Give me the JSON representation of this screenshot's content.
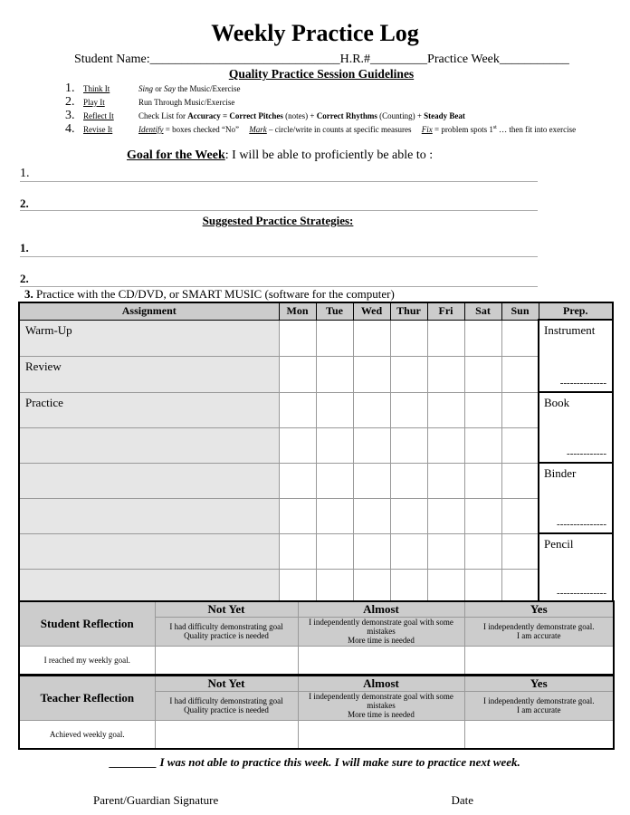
{
  "title": "Weekly Practice Log",
  "header": {
    "student_name": "Student Name:______________________________H.R.#_________Practice Week___________"
  },
  "guidelines": {
    "title": "Quality Practice Session Guidelines",
    "items": [
      {
        "num": "1.",
        "step": "Think It",
        "desc_html": "<i>Sing</i> or <i>Say</i> the Music/Exercise"
      },
      {
        "num": "2.",
        "step": "Play It",
        "desc_html": "Run Through Music/Exercise"
      },
      {
        "num": "3.",
        "step": "Reflect It",
        "desc_html": "Check List for <b>Accuracy = Correct Pitches</b> (notes) + <b>Correct Rhythms</b> (Counting) + <b>Steady Beat</b>"
      },
      {
        "num": "4.",
        "step": "Revise It",
        "desc_html": "<i><u>Identify</u></i> = boxes checked “No”&nbsp;&nbsp;&nbsp;&nbsp; <i><u>Mark</u></i> – circle/write in counts at specific measures &nbsp;&nbsp;&nbsp; <i><u>Fix</u></i> = problem spots 1<sup style='font-size:6px'>st</sup> … then fit into exercise"
      }
    ]
  },
  "goal": {
    "label": "Goal for the Week",
    "text": ":  I will be able to proficiently be able to :",
    "lines": [
      "1.",
      "2."
    ]
  },
  "strategies": {
    "title": "Suggested Practice Strategies:",
    "lines": [
      "1.",
      "2."
    ],
    "item3_num": "3.",
    "item3": " Practice with the CD/DVD, or SMART MUSIC (software for the computer)"
  },
  "table": {
    "assignment": "Assignment",
    "days": [
      "Mon",
      "Tue",
      "Wed",
      "Thur",
      "Fri",
      "Sat",
      "Sun"
    ],
    "prep": "Prep.",
    "rows": [
      "Warm-Up",
      "Review",
      "Practice",
      "",
      "",
      "",
      "",
      ""
    ],
    "prep_items": [
      {
        "label": "Instrument",
        "dash": "--------------"
      },
      {
        "label": "Book",
        "dash": "------------"
      },
      {
        "label": "Binder",
        "dash": "---------------"
      },
      {
        "label": "Pencil",
        "dash": "---------------"
      }
    ]
  },
  "reflection": {
    "levels": [
      "Not Yet",
      "Almost",
      "Yes"
    ],
    "descriptions": [
      [
        "I had difficulty demonstrating goal",
        "Quality practice is needed"
      ],
      [
        "I independently demonstrate goal with some mistakes",
        "More time is needed"
      ],
      [
        "I independently demonstrate goal.",
        "I am accurate"
      ]
    ],
    "student": {
      "label": "Student Reflection",
      "goal": "I reached my weekly goal."
    },
    "teacher": {
      "label": "Teacher Reflection",
      "goal": "Achieved weekly goal."
    }
  },
  "footer": {
    "not_practiced": "________ I was not able to practice this week.  I will make sure to practice next week.",
    "parent": "Parent/Guardian Signature",
    "date": "Date"
  }
}
